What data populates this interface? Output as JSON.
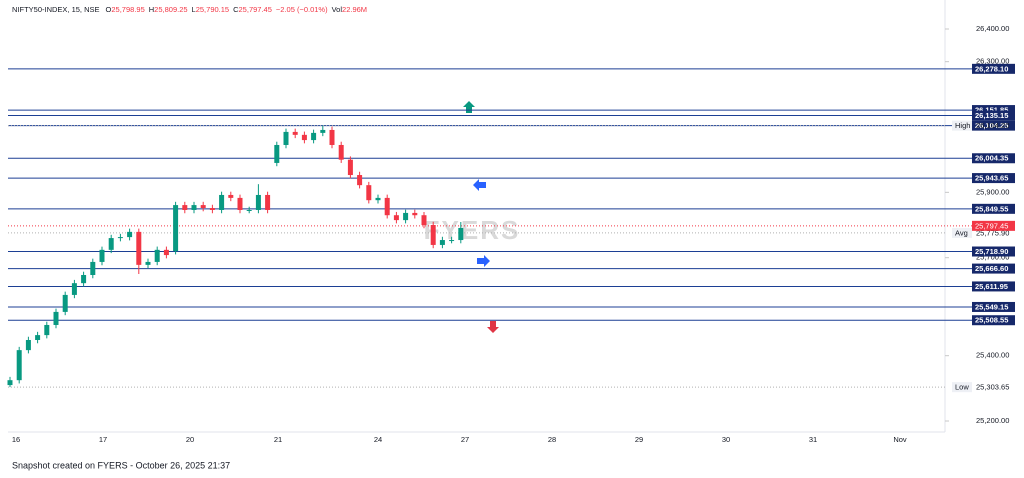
{
  "chart_data": {
    "type": "candlestick",
    "header": {
      "symbol": "NIFTY50-INDEX, 15, NSE",
      "fields": [
        {
          "label": "O",
          "value": "25,798.95"
        },
        {
          "label": "H",
          "value": "25,809.25"
        },
        {
          "label": "L",
          "value": "25,790.15"
        },
        {
          "label": "C",
          "value": "25,797.45"
        }
      ],
      "change": "−2.05 (−0.01%)",
      "volume_label": "Vol",
      "volume": "22.96M"
    },
    "categories": [
      "16",
      "17",
      "20",
      "21",
      "24",
      "27",
      "28",
      "29",
      "30",
      "31",
      "Nov"
    ],
    "open": [
      25310,
      25325,
      25417,
      25448,
      25463,
      25494,
      25534,
      25586,
      25622,
      25647,
      25687,
      25724,
      25760,
      25763,
      25779,
      25678,
      25687,
      25724,
      25720,
      25861,
      25846,
      25861,
      25852,
      25846,
      25892,
      25883,
      25846,
      25846,
      25892,
      25990,
      26045,
      26085,
      26076,
      26060,
      26082,
      26091,
      26045,
      26000,
      25953,
      25922,
      25876,
      25883,
      25830,
      25815,
      25837,
      25830,
      25800,
      25739,
      25754,
      25754
    ],
    "high": [
      25335,
      25427,
      25458,
      25473,
      25504,
      25544,
      25596,
      25632,
      25657,
      25697,
      25734,
      25770,
      25773,
      25789,
      25789,
      25697,
      25734,
      25734,
      25871,
      25871,
      25871,
      25871,
      25862,
      25902,
      25902,
      25893,
      25856,
      25925,
      25902,
      26055,
      26095,
      26095,
      26086,
      26092,
      26104.2,
      26101,
      26055,
      26010,
      25963,
      25932,
      25893,
      25893,
      25840,
      25847,
      25847,
      25840,
      25810,
      25764,
      25764,
      25809.25
    ],
    "low": [
      25303.65,
      25315,
      25407,
      25438,
      25453,
      25484,
      25524,
      25576,
      25612,
      25637,
      25677,
      25714,
      25750,
      25753,
      25650,
      25668,
      25677,
      25698,
      25710,
      25836,
      25836,
      25842,
      25836,
      25836,
      25873,
      25836,
      25836,
      25836,
      25836,
      25980,
      26035,
      26066,
      26050,
      26050,
      26072,
      26035,
      25990,
      25943,
      25912,
      25866,
      25866,
      25820,
      25805,
      25805,
      25820,
      25790,
      25729,
      25729,
      25744,
      25744
    ],
    "close": [
      25325,
      25417,
      25448,
      25463,
      25494,
      25534,
      25586,
      25622,
      25647,
      25687,
      25724,
      25760,
      25763,
      25779,
      25678,
      25687,
      25724,
      25708,
      25861,
      25846,
      25861,
      25852,
      25846,
      25892,
      25883,
      25846,
      25846,
      25892,
      25846,
      26045,
      26085,
      26076,
      26060,
      26082,
      26091,
      26045,
      26000,
      25953,
      25922,
      25876,
      25883,
      25830,
      25815,
      25837,
      25830,
      25800,
      25739,
      25754,
      25754,
      25791
    ],
    "up_color": "#089981",
    "down_color": "#f23645",
    "ylim": [
      25172.5,
      26488.8
    ],
    "yticks": [
      {
        "value": 26400,
        "label": "26,400.00"
      },
      {
        "value": 26300,
        "label": "26,300.00"
      },
      {
        "value": 25900,
        "label": "25,900.00"
      },
      {
        "value": 25700,
        "label": "25,700.00"
      },
      {
        "value": 25400,
        "label": "25,400.00"
      },
      {
        "value": 25200,
        "label": "25,200.00"
      }
    ],
    "levels": {
      "color": "#1c3f94",
      "values": [
        26278.1,
        26151.85,
        26135.15,
        26104.25,
        26004.35,
        25943.65,
        25849.55,
        25718.9,
        25666.6,
        25611.95,
        25549.15,
        25508.55
      ],
      "value_labels": [
        "26,278.10",
        "26,151.85",
        "26,135.15",
        "26,104.25",
        "26,004.35",
        "25,943.65",
        "25,849.55",
        "25,718.90",
        "25,666.60",
        "25,611.95",
        "25,549.15",
        "25,508.55"
      ]
    },
    "markers": [
      {
        "label": "High",
        "value": 26104.2,
        "value_label": "26,104.20"
      },
      {
        "label": "Avg",
        "value": 25775.9,
        "value_label": "25,775.90"
      },
      {
        "label": "Low",
        "value": 25303.65,
        "value_label": "25,303.65"
      }
    ],
    "last_price": {
      "value": 25797.45,
      "value_label": "25,797.45"
    },
    "watermark": "FYERS",
    "footer": "Snapshot created on FYERS - October 26, 2025 21:37"
  }
}
